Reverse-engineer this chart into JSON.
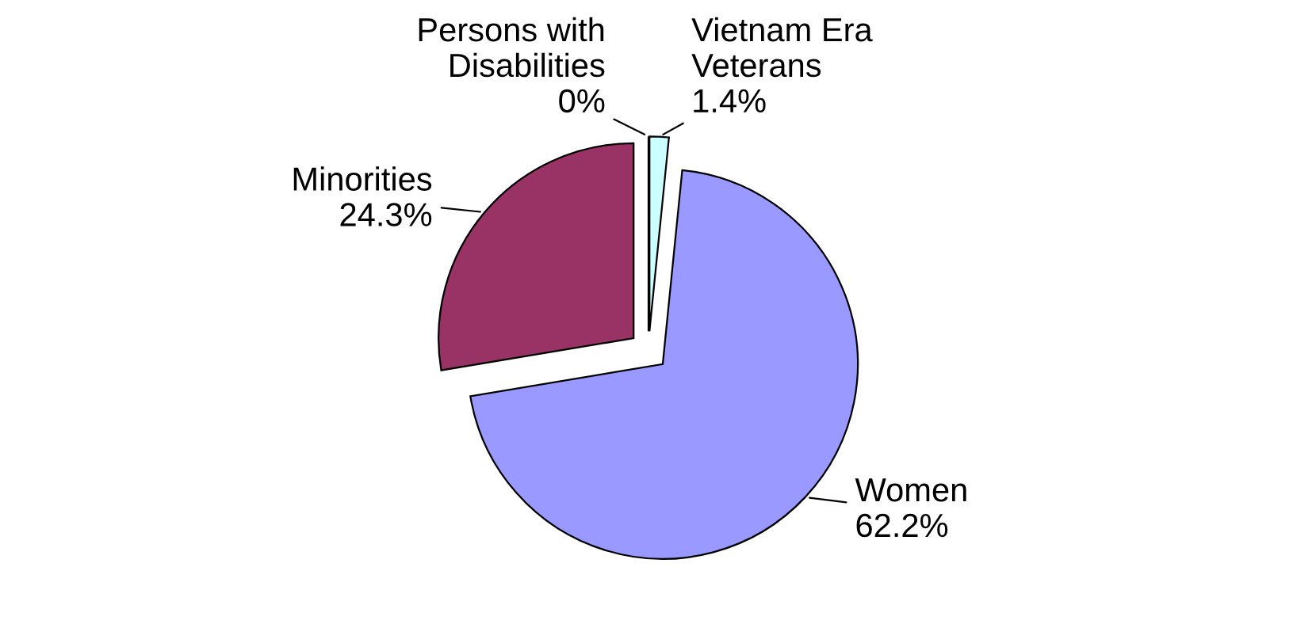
{
  "chart_data": {
    "type": "pie",
    "categories": [
      "Women",
      "Minorities",
      "Persons with Disabilities",
      "Vietnam Era Veterans"
    ],
    "values": [
      62.2,
      24.3,
      0,
      1.4
    ],
    "value_labels": [
      "62.2%",
      "24.3%",
      "0%",
      "1.4%"
    ],
    "colors": [
      "#9999ff",
      "#993366",
      "#808060",
      "#ccffff"
    ],
    "legend": false
  }
}
